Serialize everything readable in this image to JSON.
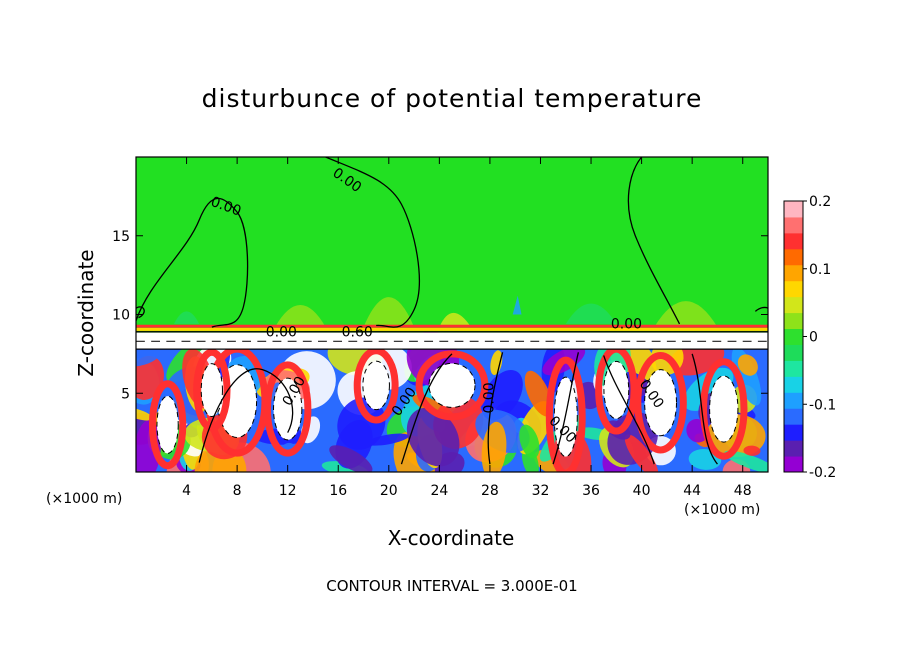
{
  "chart_data": {
    "type": "heatmap",
    "title": "disturbunce of potential temperature",
    "xlabel": "X-coordinate",
    "ylabel": "Z-coordinate",
    "x_unit": "(×1000 m)",
    "footer": "CONTOUR INTERVAL = 3.000E-01",
    "xlim": [
      0,
      50
    ],
    "ylim": [
      0,
      20
    ],
    "x_ticks": [
      "4",
      "8",
      "12",
      "16",
      "20",
      "24",
      "28",
      "32",
      "36",
      "40",
      "44",
      "48"
    ],
    "y_ticks": [
      "5",
      "10",
      "15"
    ],
    "colorbar": {
      "range": [
        -0.2,
        0.2
      ],
      "tick_labels": [
        "0.2",
        "0.1",
        "0",
        "-0.1",
        "-0.2"
      ],
      "colors": [
        "#9400d3",
        "#5a1fb0",
        "#1e1eff",
        "#2a6bff",
        "#1ea0ff",
        "#18d2e6",
        "#1ee6a0",
        "#1edc5a",
        "#2ee02e",
        "#8ee21a",
        "#d2e61a",
        "#ffd700",
        "#ffa500",
        "#ff6a00",
        "#ff3030",
        "#ff7070",
        "#ffb6c1"
      ]
    },
    "contour_labels": [
      "0.00",
      "0.00",
      "0.00",
      "0.00",
      "0.00",
      "0.00",
      "0.00",
      "0.00",
      "0.00",
      "0.60",
      "0.00"
    ],
    "background_color": "#22e022"
  }
}
